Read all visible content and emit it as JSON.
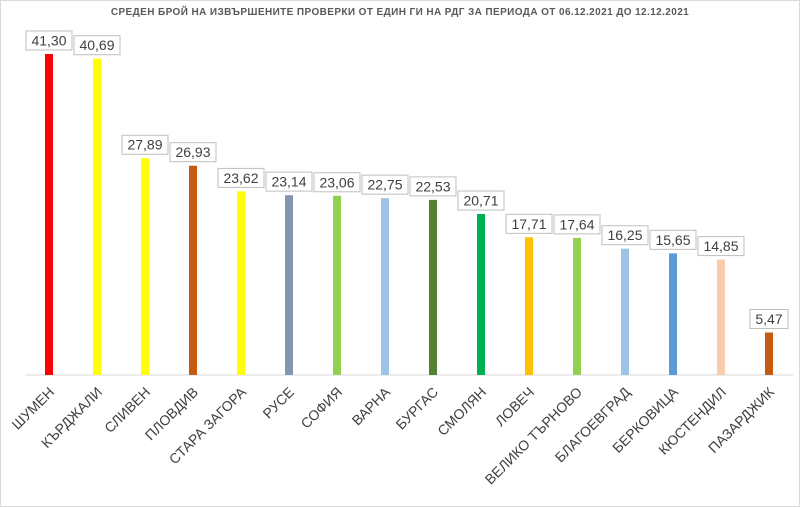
{
  "chart_data": {
    "type": "bar",
    "title": "СРЕДЕН БРОЙ НА ИЗВЪРШЕНИТЕ ПРОВЕРКИ ОТ ЕДИН ГИ НА РДГ ЗА ПЕРИОДА ОТ 06.12.2021 ДО 12.12.2021",
    "xlabel": "",
    "ylabel": "",
    "ylim": [
      0,
      41.3
    ],
    "grid": false,
    "legend": "none",
    "categories": [
      "ШУМЕН",
      "КЪРДЖАЛИ",
      "СЛИВЕН",
      "ПЛОВДИВ",
      "СТАРА ЗАГОРА",
      "РУСЕ",
      "СОФИЯ",
      "ВАРНА",
      "БУРГАС",
      "СМОЛЯН",
      "ЛОВЕЧ",
      "ВЕЛИКО ТЪРНОВО",
      "БЛАГОЕВГРАД",
      "БЕРКОВИЦА",
      "КЮСТЕНДИЛ",
      "ПАЗАРДЖИК"
    ],
    "values": [
      41.3,
      40.69,
      27.89,
      26.93,
      23.62,
      23.14,
      23.06,
      22.75,
      22.53,
      20.71,
      17.71,
      17.64,
      16.25,
      15.65,
      14.85,
      5.47
    ],
    "value_labels": [
      "41,30",
      "40,69",
      "27,89",
      "26,93",
      "23,62",
      "23,14",
      "23,06",
      "22,75",
      "22,53",
      "20,71",
      "17,71",
      "17,64",
      "16,25",
      "15,65",
      "14,85",
      "5,47"
    ],
    "colors": [
      "#ff0000",
      "#ffff00",
      "#ffff00",
      "#c55a11",
      "#ffff00",
      "#8497b0",
      "#92d050",
      "#9dc3e6",
      "#548235",
      "#00b050",
      "#ffc000",
      "#92d050",
      "#9dc3e6",
      "#5b9bd5",
      "#f8cbad",
      "#c55a11"
    ]
  }
}
